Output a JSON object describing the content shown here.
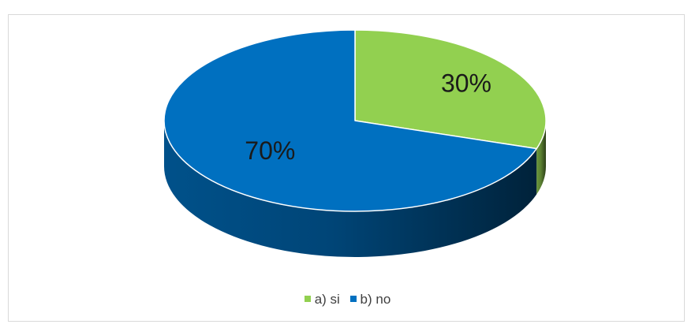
{
  "chart_data": {
    "type": "pie",
    "style": "3d",
    "categories": [
      "a) si",
      "b) no"
    ],
    "values": [
      30,
      70
    ],
    "data_labels": [
      "30%",
      "70%"
    ],
    "colors": [
      "#92d050",
      "#0070c0"
    ],
    "legend_position": "bottom"
  }
}
